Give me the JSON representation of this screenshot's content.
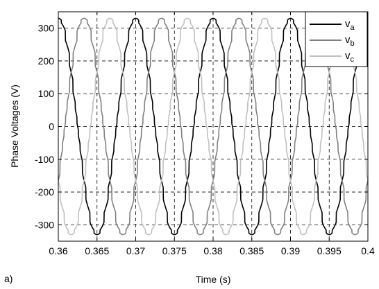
{
  "panel_label": "a)",
  "chart_data": {
    "type": "line",
    "xlabel": "Time (s)",
    "ylabel": "Phase Voltages (V)",
    "xlim": [
      0.36,
      0.4
    ],
    "ylim": [
      -350,
      350
    ],
    "x_ticks": [
      "0.36",
      "0.365",
      "0.37",
      "0.375",
      "0.38",
      "0.385",
      "0.39",
      "0.395",
      "0.4"
    ],
    "y_ticks": [
      "300",
      "200",
      "100",
      "0",
      "-100",
      "-200",
      "-300"
    ],
    "grid": true,
    "legend_position": "top-right",
    "waveform": {
      "fundamental_frequency_hz": 100,
      "peak_v": 330,
      "step_levels_v": [
        -330,
        -310,
        -245,
        -165,
        -85,
        -40,
        0,
        40,
        85,
        165,
        245,
        310,
        330
      ]
    },
    "series": [
      {
        "name": "v",
        "subscript": "a",
        "color": "#000000",
        "phase_deg": 90
      },
      {
        "name": "v",
        "subscript": "b",
        "color": "#808080",
        "phase_deg": -30
      },
      {
        "name": "v",
        "subscript": "c",
        "color": "#c0c0c0",
        "phase_deg": 210
      }
    ]
  }
}
